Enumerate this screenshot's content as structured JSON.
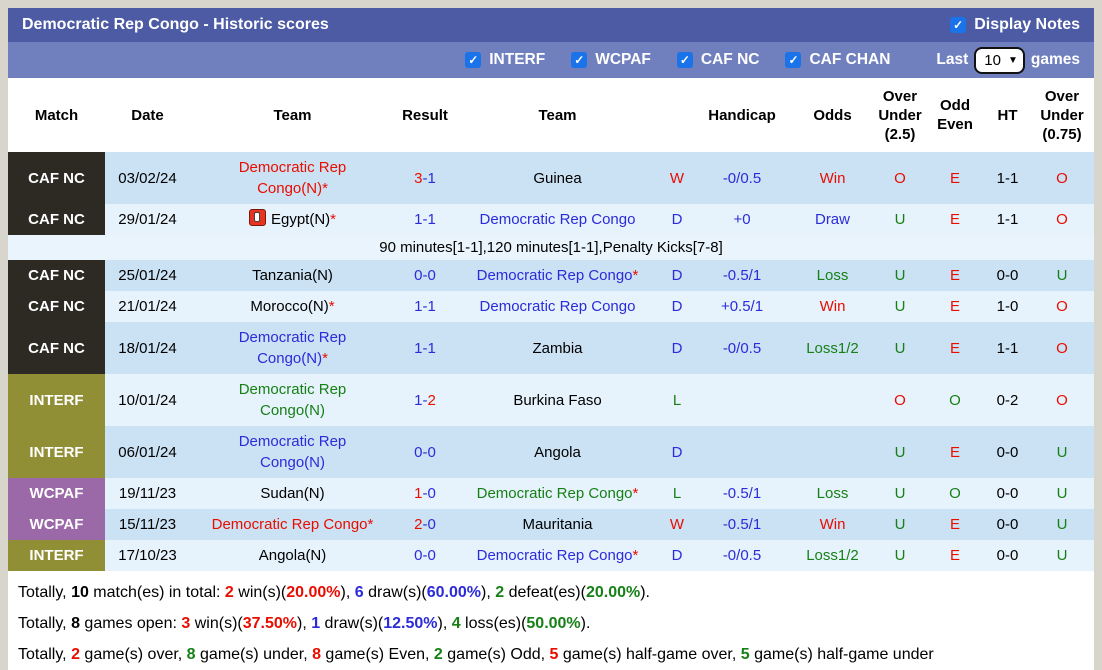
{
  "palette": {
    "red": "#e90d00",
    "blue": "#2b2bd9",
    "green": "#168016",
    "black": "#000000",
    "title_bar_bg": "#4d5aa4",
    "filter_bar_bg": "#7080bf",
    "checkbox_blue": "#1a73e8",
    "row_dark": "#cbe2f4",
    "row_light": "#e7f3fc"
  },
  "title_bar": {
    "title": "Democratic Rep Congo - Historic scores",
    "display_notes_label": "Display Notes",
    "display_notes_checked": true
  },
  "filter_bar": {
    "checkboxes": [
      {
        "label": "INTERF",
        "checked": true
      },
      {
        "label": "WCPAF",
        "checked": true
      },
      {
        "label": "CAF NC",
        "checked": true
      },
      {
        "label": "CAF CHAN",
        "checked": true
      }
    ],
    "last_label": "Last",
    "last_value": "10",
    "games_label": "games"
  },
  "table": {
    "headers": [
      "Match",
      "Date",
      "Team",
      "Result",
      "Team",
      "",
      "Handicap",
      "Odds",
      "Over\nUnder\n(2.5)",
      "Odd\nEven",
      "HT",
      "Over\nUnder\n(0.75)"
    ],
    "badge_colors": {
      "CAF NC": "#2d2a24",
      "INTERF": "#918f35",
      "WCPAF": "#9b68a8"
    },
    "rows": [
      {
        "type": "match",
        "shade": "dark",
        "badge": "CAF NC",
        "date": "03/02/24",
        "home": {
          "name": "Democratic Rep\nCongo(N)",
          "color": "red",
          "star": true
        },
        "result": {
          "h": "3",
          "hc": "red",
          "a": "1",
          "ac": "blue"
        },
        "away": {
          "name": "Guinea",
          "color": "black"
        },
        "wdl": {
          "text": "W",
          "color": "red"
        },
        "handicap": "-0/0.5",
        "odds": {
          "text": "Win",
          "color": "red"
        },
        "ou25": {
          "text": "O",
          "color": "red"
        },
        "oddeven": {
          "text": "E",
          "color": "red"
        },
        "ht": "1-1",
        "ou075": {
          "text": "O",
          "color": "red"
        }
      },
      {
        "type": "match",
        "shade": "light",
        "badge": "CAF NC",
        "date": "29/01/24",
        "home": {
          "name": "Egypt(N)",
          "color": "black",
          "star": true,
          "icon": "red-card-flag-icon"
        },
        "result": {
          "h": "1",
          "hc": "blue",
          "a": "1",
          "ac": "blue"
        },
        "away": {
          "name": "Democratic Rep Congo",
          "color": "blue"
        },
        "wdl": {
          "text": "D",
          "color": "blue"
        },
        "handicap": "+0",
        "odds": {
          "text": "Draw",
          "color": "blue"
        },
        "ou25": {
          "text": "U",
          "color": "green"
        },
        "oddeven": {
          "text": "E",
          "color": "red"
        },
        "ht": "1-1",
        "ou075": {
          "text": "O",
          "color": "red"
        }
      },
      {
        "type": "note",
        "text": "90 minutes[1-1],120 minutes[1-1],Penalty Kicks[7-8]"
      },
      {
        "type": "match",
        "shade": "dark",
        "badge": "CAF NC",
        "date": "25/01/24",
        "home": {
          "name": "Tanzania(N)",
          "color": "black"
        },
        "result": {
          "h": "0",
          "hc": "blue",
          "a": "0",
          "ac": "blue"
        },
        "away": {
          "name": "Democratic Rep Congo",
          "color": "blue",
          "star": true
        },
        "wdl": {
          "text": "D",
          "color": "blue"
        },
        "handicap": "-0.5/1",
        "odds": {
          "text": "Loss",
          "color": "green"
        },
        "ou25": {
          "text": "U",
          "color": "green"
        },
        "oddeven": {
          "text": "E",
          "color": "red"
        },
        "ht": "0-0",
        "ou075": {
          "text": "U",
          "color": "green"
        }
      },
      {
        "type": "match",
        "shade": "light",
        "badge": "CAF NC",
        "date": "21/01/24",
        "home": {
          "name": "Morocco(N)",
          "color": "black",
          "star": true
        },
        "result": {
          "h": "1",
          "hc": "blue",
          "a": "1",
          "ac": "blue"
        },
        "away": {
          "name": "Democratic Rep Congo",
          "color": "blue"
        },
        "wdl": {
          "text": "D",
          "color": "blue"
        },
        "handicap": "+0.5/1",
        "odds": {
          "text": "Win",
          "color": "red"
        },
        "ou25": {
          "text": "U",
          "color": "green"
        },
        "oddeven": {
          "text": "E",
          "color": "red"
        },
        "ht": "1-0",
        "ou075": {
          "text": "O",
          "color": "red"
        }
      },
      {
        "type": "match",
        "shade": "dark",
        "badge": "CAF NC",
        "date": "18/01/24",
        "home": {
          "name": "Democratic Rep\nCongo(N)",
          "color": "blue",
          "star": true
        },
        "result": {
          "h": "1",
          "hc": "blue",
          "a": "1",
          "ac": "blue"
        },
        "away": {
          "name": "Zambia",
          "color": "black"
        },
        "wdl": {
          "text": "D",
          "color": "blue"
        },
        "handicap": "-0/0.5",
        "odds": {
          "text": "Loss1/2",
          "color": "green"
        },
        "ou25": {
          "text": "U",
          "color": "green"
        },
        "oddeven": {
          "text": "E",
          "color": "red"
        },
        "ht": "1-1",
        "ou075": {
          "text": "O",
          "color": "red"
        }
      },
      {
        "type": "match",
        "shade": "light",
        "badge": "INTERF",
        "date": "10/01/24",
        "home": {
          "name": "Democratic Rep\nCongo(N)",
          "color": "green"
        },
        "result": {
          "h": "1",
          "hc": "blue",
          "a": "2",
          "ac": "red"
        },
        "away": {
          "name": "Burkina Faso",
          "color": "black"
        },
        "wdl": {
          "text": "L",
          "color": "green"
        },
        "handicap": "",
        "odds": {
          "text": "",
          "color": "black"
        },
        "ou25": {
          "text": "O",
          "color": "red"
        },
        "oddeven": {
          "text": "O",
          "color": "green"
        },
        "ht": "0-2",
        "ou075": {
          "text": "O",
          "color": "red"
        }
      },
      {
        "type": "match",
        "shade": "dark",
        "badge": "INTERF",
        "date": "06/01/24",
        "home": {
          "name": "Democratic Rep\nCongo(N)",
          "color": "blue"
        },
        "result": {
          "h": "0",
          "hc": "blue",
          "a": "0",
          "ac": "blue"
        },
        "away": {
          "name": "Angola",
          "color": "black"
        },
        "wdl": {
          "text": "D",
          "color": "blue"
        },
        "handicap": "",
        "odds": {
          "text": "",
          "color": "black"
        },
        "ou25": {
          "text": "U",
          "color": "green"
        },
        "oddeven": {
          "text": "E",
          "color": "red"
        },
        "ht": "0-0",
        "ou075": {
          "text": "U",
          "color": "green"
        }
      },
      {
        "type": "match",
        "shade": "light",
        "badge": "WCPAF",
        "date": "19/11/23",
        "home": {
          "name": "Sudan(N)",
          "color": "black"
        },
        "result": {
          "h": "1",
          "hc": "red",
          "a": "0",
          "ac": "blue"
        },
        "away": {
          "name": "Democratic Rep Congo",
          "color": "green",
          "star": true
        },
        "wdl": {
          "text": "L",
          "color": "green"
        },
        "handicap": "-0.5/1",
        "odds": {
          "text": "Loss",
          "color": "green"
        },
        "ou25": {
          "text": "U",
          "color": "green"
        },
        "oddeven": {
          "text": "O",
          "color": "green"
        },
        "ht": "0-0",
        "ou075": {
          "text": "U",
          "color": "green"
        }
      },
      {
        "type": "match",
        "shade": "dark",
        "badge": "WCPAF",
        "date": "15/11/23",
        "home": {
          "name": "Democratic Rep Congo",
          "color": "red",
          "star": true
        },
        "result": {
          "h": "2",
          "hc": "red",
          "a": "0",
          "ac": "blue"
        },
        "away": {
          "name": "Mauritania",
          "color": "black"
        },
        "wdl": {
          "text": "W",
          "color": "red"
        },
        "handicap": "-0.5/1",
        "odds": {
          "text": "Win",
          "color": "red"
        },
        "ou25": {
          "text": "U",
          "color": "green"
        },
        "oddeven": {
          "text": "E",
          "color": "red"
        },
        "ht": "0-0",
        "ou075": {
          "text": "U",
          "color": "green"
        }
      },
      {
        "type": "match",
        "shade": "light",
        "badge": "INTERF",
        "date": "17/10/23",
        "home": {
          "name": "Angola(N)",
          "color": "black"
        },
        "result": {
          "h": "0",
          "hc": "blue",
          "a": "0",
          "ac": "blue"
        },
        "away": {
          "name": "Democratic Rep Congo",
          "color": "blue",
          "star": true
        },
        "wdl": {
          "text": "D",
          "color": "blue"
        },
        "handicap": "-0/0.5",
        "odds": {
          "text": "Loss1/2",
          "color": "green"
        },
        "ou25": {
          "text": "U",
          "color": "green"
        },
        "oddeven": {
          "text": "E",
          "color": "red"
        },
        "ht": "0-0",
        "ou075": {
          "text": "U",
          "color": "green"
        }
      }
    ]
  },
  "summary": {
    "lines": [
      [
        {
          "t": "Totally, "
        },
        {
          "t": "10",
          "b": 1
        },
        {
          "t": " match(es) in total: "
        },
        {
          "t": "2",
          "c": "red",
          "b": 1
        },
        {
          "t": " win(s)("
        },
        {
          "t": "20.00%",
          "c": "red",
          "b": 1
        },
        {
          "t": "), "
        },
        {
          "t": "6",
          "c": "blue",
          "b": 1
        },
        {
          "t": " draw(s)("
        },
        {
          "t": "60.00%",
          "c": "blue",
          "b": 1
        },
        {
          "t": "), "
        },
        {
          "t": "2",
          "c": "green",
          "b": 1
        },
        {
          "t": " defeat(es)("
        },
        {
          "t": "20.00%",
          "c": "green",
          "b": 1
        },
        {
          "t": ")."
        }
      ],
      [
        {
          "t": "Totally, "
        },
        {
          "t": "8",
          "b": 1
        },
        {
          "t": " games open: "
        },
        {
          "t": "3",
          "c": "red",
          "b": 1
        },
        {
          "t": " win(s)("
        },
        {
          "t": "37.50%",
          "c": "red",
          "b": 1
        },
        {
          "t": "), "
        },
        {
          "t": "1",
          "c": "blue",
          "b": 1
        },
        {
          "t": " draw(s)("
        },
        {
          "t": "12.50%",
          "c": "blue",
          "b": 1
        },
        {
          "t": "), "
        },
        {
          "t": "4",
          "c": "green",
          "b": 1
        },
        {
          "t": " loss(es)("
        },
        {
          "t": "50.00%",
          "c": "green",
          "b": 1
        },
        {
          "t": ")."
        }
      ],
      [
        {
          "t": "Totally, "
        },
        {
          "t": "2",
          "c": "red",
          "b": 1
        },
        {
          "t": " game(s) over, "
        },
        {
          "t": "8",
          "c": "green",
          "b": 1
        },
        {
          "t": " game(s) under, "
        },
        {
          "t": "8",
          "c": "red",
          "b": 1
        },
        {
          "t": " game(s) Even, "
        },
        {
          "t": "2",
          "c": "green",
          "b": 1
        },
        {
          "t": " game(s) Odd, "
        },
        {
          "t": "5",
          "c": "red",
          "b": 1
        },
        {
          "t": " game(s) half-game over, "
        },
        {
          "t": "5",
          "c": "green",
          "b": 1
        },
        {
          "t": " game(s) half-game under"
        }
      ]
    ]
  }
}
